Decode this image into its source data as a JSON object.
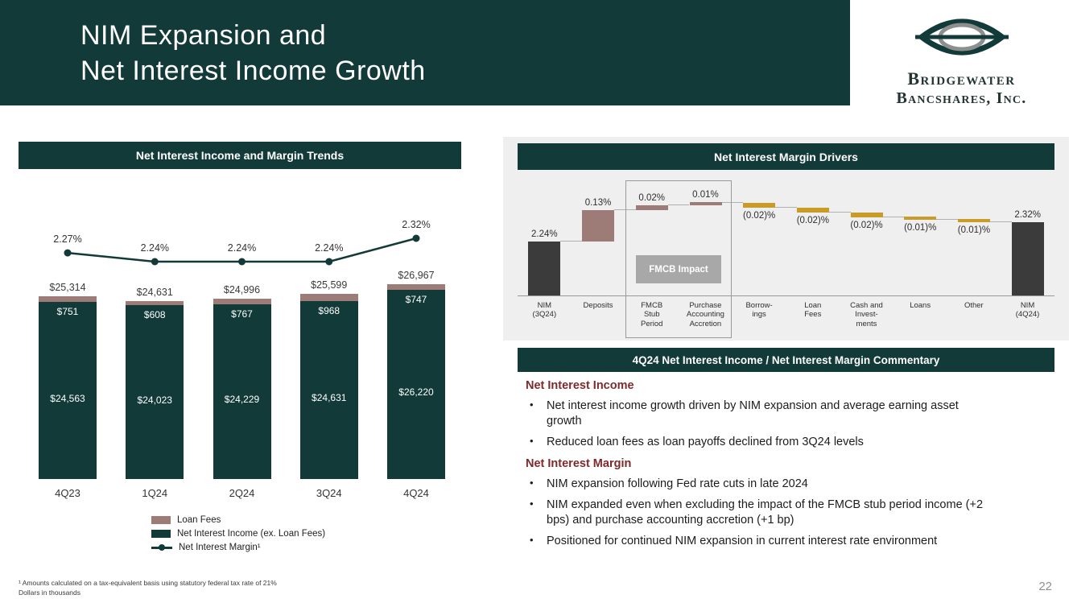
{
  "slide": {
    "title_line1": "NIM Expansion and",
    "title_line2": "Net Interest Income Growth",
    "page_number": "22",
    "footnote_line1": "¹ Amounts calculated on a tax-equivalent basis using statutory federal tax rate of 21%",
    "footnote_line2": "Dollars in thousands"
  },
  "logo": {
    "name_line1": "Bridgewater",
    "name_line2": "Bancshares, Inc."
  },
  "colors": {
    "teal": "#113a38",
    "mauve": "#9d7c77",
    "gold": "#c99b28",
    "dark_bar": "#3b3b3b",
    "maroon": "#7e2a2a",
    "panel_gray": "#efefef",
    "tag_gray": "#a8a8a8"
  },
  "chart_data": [
    {
      "id": "nii_and_margin_trends",
      "type": "bar",
      "title": "Net Interest Income and Margin Trends",
      "categories": [
        "4Q23",
        "1Q24",
        "2Q24",
        "3Q24",
        "4Q24"
      ],
      "series": [
        {
          "name": "Net Interest Income (ex. Loan Fees)",
          "values": [
            24563,
            24023,
            24229,
            24631,
            26220
          ],
          "labels": [
            "$24,563",
            "$24,023",
            "$24,229",
            "$24,631",
            "$26,220"
          ],
          "color": "#113a38"
        },
        {
          "name": "Loan Fees",
          "values": [
            751,
            608,
            767,
            968,
            747
          ],
          "labels": [
            "$751",
            "$608",
            "$767",
            "$968",
            "$747"
          ],
          "color": "#9d7c77"
        }
      ],
      "totals": {
        "values": [
          25314,
          24631,
          24996,
          25599,
          26967
        ],
        "labels": [
          "$25,314",
          "$24,631",
          "$24,996",
          "$25,599",
          "$26,967"
        ]
      },
      "line": {
        "name": "Net Interest Margin¹",
        "values": [
          2.27,
          2.24,
          2.24,
          2.24,
          2.32
        ],
        "labels": [
          "2.27%",
          "2.24%",
          "2.24%",
          "2.24%",
          "2.32%"
        ],
        "color": "#113a38"
      },
      "legend": [
        "Loan Fees",
        "Net Interest Income (ex. Loan Fees)",
        "Net Interest Margin¹"
      ],
      "units": "Dollars in thousands"
    },
    {
      "id": "nim_drivers_waterfall",
      "type": "bar",
      "subtype": "waterfall",
      "title": "Net Interest Margin Drivers",
      "columns": [
        {
          "label_lines": [
            "NIM",
            "(3Q24)"
          ],
          "value": 2.24,
          "display": "2.24%",
          "kind": "total"
        },
        {
          "label_lines": [
            "Deposits"
          ],
          "value": 0.13,
          "display": "0.13%",
          "kind": "increase"
        },
        {
          "label_lines": [
            "FMCB",
            "Stub",
            "Period"
          ],
          "value": 0.02,
          "display": "0.02%",
          "kind": "increase"
        },
        {
          "label_lines": [
            "Purchase",
            "Accounting",
            "Accretion"
          ],
          "value": 0.01,
          "display": "0.01%",
          "kind": "increase"
        },
        {
          "label_lines": [
            "Borrow-",
            "ings"
          ],
          "value": -0.02,
          "display": "(0.02)%",
          "kind": "decrease"
        },
        {
          "label_lines": [
            "Loan",
            "Fees"
          ],
          "value": -0.02,
          "display": "(0.02)%",
          "kind": "decrease"
        },
        {
          "label_lines": [
            "Cash and",
            "Invest-",
            "ments"
          ],
          "value": -0.02,
          "display": "(0.02)%",
          "kind": "decrease"
        },
        {
          "label_lines": [
            "Loans"
          ],
          "value": -0.01,
          "display": "(0.01)%",
          "kind": "decrease"
        },
        {
          "label_lines": [
            "Other"
          ],
          "value": -0.01,
          "display": "(0.01)%",
          "kind": "decrease"
        },
        {
          "label_lines": [
            "NIM",
            "(4Q24)"
          ],
          "value": 2.32,
          "display": "2.32%",
          "kind": "total"
        }
      ],
      "annotation": "FMCB Impact"
    }
  ],
  "commentary": {
    "title": "4Q24 Net Interest Income / Net Interest Margin Commentary",
    "sections": [
      {
        "heading": "Net Interest Income",
        "bullets": [
          "Net interest income growth driven by NIM expansion and average earning asset growth",
          "Reduced loan fees as loan payoffs declined from 3Q24 levels"
        ]
      },
      {
        "heading": "Net Interest Margin",
        "bullets": [
          "NIM expansion following Fed rate cuts in late 2024",
          "NIM expanded even when excluding the impact of the FMCB stub period income (+2 bps) and purchase accounting accretion (+1 bp)",
          "Positioned for continued NIM expansion in current interest rate environment"
        ]
      }
    ]
  }
}
